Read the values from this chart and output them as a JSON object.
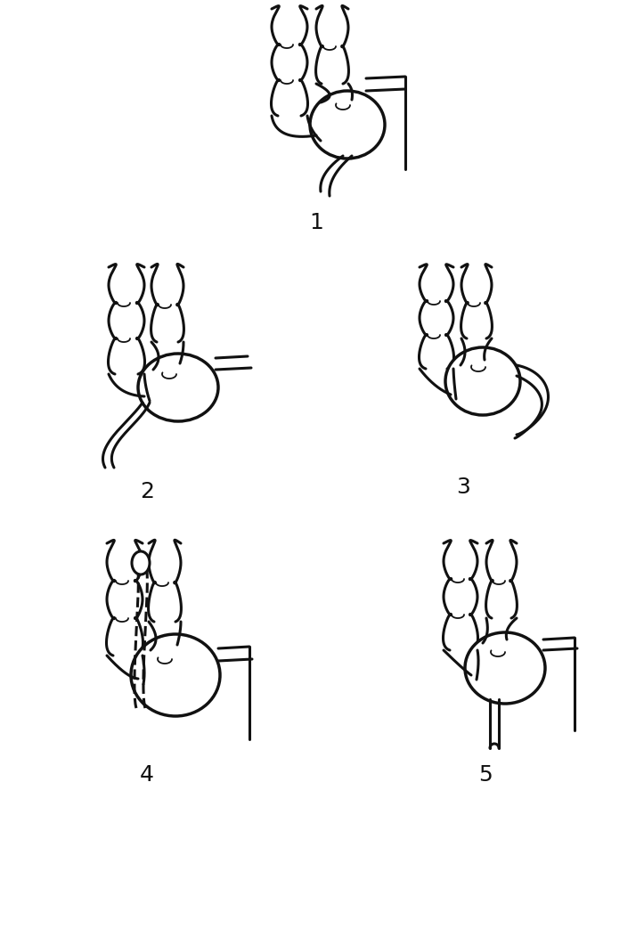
{
  "background_color": "#ffffff",
  "line_color": "#111111",
  "line_width": 2.2,
  "label_fontsize": 18,
  "fig_width": 7.23,
  "fig_height": 10.52
}
